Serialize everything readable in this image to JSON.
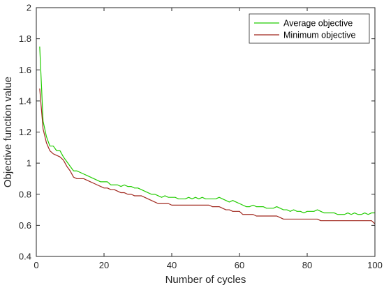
{
  "chart_data": {
    "type": "line",
    "title": "",
    "xlabel": "Number of cycles",
    "ylabel": "Objective function value",
    "xlim": [
      0,
      100
    ],
    "ylim": [
      0.4,
      2
    ],
    "xticks": [
      0,
      20,
      40,
      60,
      80,
      100
    ],
    "yticks": [
      0.4,
      0.6,
      0.8,
      1,
      1.2,
      1.4,
      1.6,
      1.8,
      2
    ],
    "xtick_labels": [
      "0",
      "20",
      "40",
      "60",
      "80",
      "100"
    ],
    "ytick_labels": [
      "0.4",
      "0.6",
      "0.8",
      "1",
      "1.2",
      "1.4",
      "1.6",
      "1.8",
      "2"
    ],
    "grid": false,
    "legend_position": "top-right",
    "series": [
      {
        "name": "Average objective",
        "color": "#22cc00",
        "x": [
          1,
          2,
          3,
          4,
          5,
          6,
          7,
          8,
          9,
          10,
          11,
          12,
          13,
          14,
          15,
          16,
          17,
          18,
          19,
          20,
          21,
          22,
          23,
          24,
          25,
          26,
          27,
          28,
          29,
          30,
          31,
          32,
          33,
          34,
          35,
          36,
          37,
          38,
          39,
          40,
          41,
          42,
          43,
          44,
          45,
          46,
          47,
          48,
          49,
          50,
          51,
          52,
          53,
          54,
          55,
          56,
          57,
          58,
          59,
          60,
          61,
          62,
          63,
          64,
          65,
          66,
          67,
          68,
          69,
          70,
          71,
          72,
          73,
          74,
          75,
          76,
          77,
          78,
          79,
          80,
          81,
          82,
          83,
          84,
          85,
          86,
          87,
          88,
          89,
          90,
          91,
          92,
          93,
          94,
          95,
          96,
          97,
          98,
          99,
          100
        ],
        "y": [
          1.75,
          1.27,
          1.17,
          1.11,
          1.11,
          1.08,
          1.08,
          1.04,
          1.01,
          0.98,
          0.95,
          0.95,
          0.94,
          0.93,
          0.92,
          0.91,
          0.9,
          0.89,
          0.88,
          0.88,
          0.88,
          0.86,
          0.86,
          0.86,
          0.85,
          0.86,
          0.85,
          0.85,
          0.84,
          0.84,
          0.83,
          0.82,
          0.81,
          0.8,
          0.8,
          0.79,
          0.78,
          0.79,
          0.78,
          0.78,
          0.78,
          0.77,
          0.77,
          0.77,
          0.78,
          0.77,
          0.78,
          0.77,
          0.78,
          0.77,
          0.77,
          0.77,
          0.77,
          0.78,
          0.77,
          0.76,
          0.75,
          0.76,
          0.75,
          0.74,
          0.73,
          0.72,
          0.72,
          0.73,
          0.72,
          0.72,
          0.72,
          0.71,
          0.71,
          0.71,
          0.72,
          0.71,
          0.7,
          0.7,
          0.69,
          0.7,
          0.69,
          0.69,
          0.68,
          0.69,
          0.69,
          0.69,
          0.7,
          0.69,
          0.68,
          0.68,
          0.68,
          0.68,
          0.67,
          0.67,
          0.67,
          0.68,
          0.67,
          0.68,
          0.67,
          0.67,
          0.68,
          0.67,
          0.68,
          0.68
        ]
      },
      {
        "name": "Minimum objective",
        "color": "#a0281e",
        "x": [
          1,
          2,
          3,
          4,
          5,
          6,
          7,
          8,
          9,
          10,
          11,
          12,
          13,
          14,
          15,
          16,
          17,
          18,
          19,
          20,
          21,
          22,
          23,
          24,
          25,
          26,
          27,
          28,
          29,
          30,
          31,
          32,
          33,
          34,
          35,
          36,
          37,
          38,
          39,
          40,
          41,
          42,
          43,
          44,
          45,
          46,
          47,
          48,
          49,
          50,
          51,
          52,
          53,
          54,
          55,
          56,
          57,
          58,
          59,
          60,
          61,
          62,
          63,
          64,
          65,
          66,
          67,
          68,
          69,
          70,
          71,
          72,
          73,
          74,
          75,
          76,
          77,
          78,
          79,
          80,
          81,
          82,
          83,
          84,
          85,
          86,
          87,
          88,
          89,
          90,
          91,
          92,
          93,
          94,
          95,
          96,
          97,
          98,
          99,
          100
        ],
        "y": [
          1.48,
          1.22,
          1.13,
          1.08,
          1.06,
          1.05,
          1.04,
          1.02,
          0.98,
          0.95,
          0.91,
          0.9,
          0.9,
          0.9,
          0.89,
          0.88,
          0.87,
          0.86,
          0.85,
          0.84,
          0.84,
          0.83,
          0.83,
          0.82,
          0.81,
          0.81,
          0.8,
          0.8,
          0.79,
          0.79,
          0.79,
          0.78,
          0.77,
          0.76,
          0.75,
          0.74,
          0.74,
          0.74,
          0.74,
          0.73,
          0.73,
          0.73,
          0.73,
          0.73,
          0.73,
          0.73,
          0.73,
          0.73,
          0.73,
          0.73,
          0.73,
          0.72,
          0.72,
          0.72,
          0.71,
          0.7,
          0.7,
          0.69,
          0.69,
          0.69,
          0.67,
          0.67,
          0.67,
          0.67,
          0.66,
          0.66,
          0.66,
          0.66,
          0.66,
          0.66,
          0.66,
          0.65,
          0.64,
          0.64,
          0.64,
          0.64,
          0.64,
          0.64,
          0.64,
          0.64,
          0.64,
          0.64,
          0.64,
          0.63,
          0.63,
          0.63,
          0.63,
          0.63,
          0.63,
          0.63,
          0.63,
          0.63,
          0.63,
          0.63,
          0.63,
          0.63,
          0.63,
          0.63,
          0.63,
          0.61
        ]
      }
    ]
  }
}
